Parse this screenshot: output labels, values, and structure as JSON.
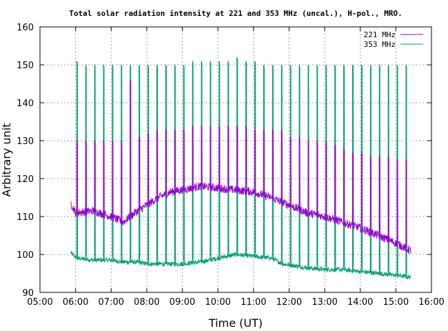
{
  "chart_data": {
    "type": "line",
    "title": "Total solar radiation intensity at 221 and 353 MHz (uncal.), H-pol., MRO.",
    "xlabel": "Time (UT)",
    "ylabel": "Arbitrary unit",
    "x_ticks": [
      "05:00",
      "06:00",
      "07:00",
      "08:00",
      "09:00",
      "10:00",
      "11:00",
      "12:00",
      "13:00",
      "14:00",
      "15:00",
      "16:00"
    ],
    "xlim_hours": [
      5,
      16
    ],
    "ylim": [
      90,
      160
    ],
    "y_ticks": [
      90,
      100,
      110,
      120,
      130,
      140,
      150,
      160
    ],
    "grid": true,
    "legend_position": "top-right",
    "series": [
      {
        "name": "221 MHz",
        "color": "#9400d3",
        "baseline": [
          [
            "05:52",
            113.5
          ],
          [
            "06:00",
            111
          ],
          [
            "06:30",
            111.5
          ],
          [
            "07:00",
            110
          ],
          [
            "07:20",
            108.5
          ],
          [
            "07:40",
            111
          ],
          [
            "08:00",
            113
          ],
          [
            "08:20",
            115
          ],
          [
            "08:40",
            116.5
          ],
          [
            "09:00",
            117
          ],
          [
            "09:30",
            118
          ],
          [
            "10:00",
            117.5
          ],
          [
            "10:30",
            117
          ],
          [
            "11:00",
            116.5
          ],
          [
            "11:30",
            115
          ],
          [
            "12:00",
            113
          ],
          [
            "12:30",
            111
          ],
          [
            "13:00",
            110
          ],
          [
            "13:30",
            108.5
          ],
          [
            "14:00",
            107
          ],
          [
            "14:30",
            105
          ],
          [
            "15:00",
            103
          ],
          [
            "15:25",
            101
          ]
        ],
        "calibration_spikes": [
          [
            "06:02",
            130
          ],
          [
            "06:17",
            130
          ],
          [
            "06:32",
            130
          ],
          [
            "06:47",
            130
          ],
          [
            "07:02",
            130
          ],
          [
            "07:17",
            130
          ],
          [
            "07:32",
            146
          ],
          [
            "07:47",
            131
          ],
          [
            "08:02",
            132
          ],
          [
            "08:17",
            133
          ],
          [
            "08:32",
            133
          ],
          [
            "08:47",
            133
          ],
          [
            "09:02",
            133
          ],
          [
            "09:17",
            134
          ],
          [
            "09:32",
            134
          ],
          [
            "09:47",
            134
          ],
          [
            "10:02",
            134
          ],
          [
            "10:17",
            134
          ],
          [
            "10:32",
            134
          ],
          [
            "10:47",
            134
          ],
          [
            "11:02",
            133
          ],
          [
            "11:17",
            133
          ],
          [
            "11:32",
            133
          ],
          [
            "11:47",
            133
          ],
          [
            "12:02",
            131
          ],
          [
            "12:17",
            131
          ],
          [
            "12:32",
            130
          ],
          [
            "12:47",
            130
          ],
          [
            "13:02",
            130
          ],
          [
            "13:17",
            129
          ],
          [
            "13:32",
            128
          ],
          [
            "13:47",
            127
          ],
          [
            "14:02",
            127
          ],
          [
            "14:17",
            126
          ],
          [
            "14:32",
            126
          ],
          [
            "14:47",
            126
          ],
          [
            "15:02",
            125
          ],
          [
            "15:17",
            125
          ]
        ]
      },
      {
        "name": "353 MHz",
        "color": "#009e73",
        "baseline": [
          [
            "05:52",
            100.5
          ],
          [
            "06:02",
            99
          ],
          [
            "06:30",
            98.5
          ],
          [
            "07:00",
            98.5
          ],
          [
            "07:20",
            98
          ],
          [
            "07:45",
            98
          ],
          [
            "08:00",
            97.5
          ],
          [
            "09:00",
            97.5
          ],
          [
            "09:30",
            98
          ],
          [
            "10:00",
            99
          ],
          [
            "10:30",
            100
          ],
          [
            "11:00",
            99.5
          ],
          [
            "11:30",
            99
          ],
          [
            "11:50",
            97.5
          ],
          [
            "12:30",
            96.5
          ],
          [
            "13:00",
            96
          ],
          [
            "13:30",
            96
          ],
          [
            "14:00",
            95.5
          ],
          [
            "14:30",
            95
          ],
          [
            "15:00",
            94.5
          ],
          [
            "15:25",
            94
          ]
        ],
        "calibration_spikes": [
          [
            "06:02",
            151
          ],
          [
            "06:17",
            150
          ],
          [
            "06:32",
            150
          ],
          [
            "06:47",
            150
          ],
          [
            "07:02",
            150
          ],
          [
            "07:17",
            150
          ],
          [
            "07:32",
            150
          ],
          [
            "07:47",
            150
          ],
          [
            "08:02",
            150
          ],
          [
            "08:17",
            150
          ],
          [
            "08:32",
            150
          ],
          [
            "08:47",
            150
          ],
          [
            "09:02",
            150
          ],
          [
            "09:17",
            151
          ],
          [
            "09:32",
            151
          ],
          [
            "09:47",
            151
          ],
          [
            "10:02",
            151
          ],
          [
            "10:17",
            151
          ],
          [
            "10:32",
            152
          ],
          [
            "10:47",
            151
          ],
          [
            "11:02",
            151
          ],
          [
            "11:17",
            150
          ],
          [
            "11:32",
            150
          ],
          [
            "11:47",
            150
          ],
          [
            "12:02",
            150
          ],
          [
            "12:17",
            150
          ],
          [
            "12:32",
            150
          ],
          [
            "12:47",
            150
          ],
          [
            "13:02",
            150
          ],
          [
            "13:17",
            150
          ],
          [
            "13:32",
            150
          ],
          [
            "13:47",
            150
          ],
          [
            "14:02",
            150
          ],
          [
            "14:17",
            150
          ],
          [
            "14:32",
            150
          ],
          [
            "14:47",
            150
          ],
          [
            "15:02",
            150
          ],
          [
            "15:17",
            150
          ]
        ]
      }
    ]
  }
}
